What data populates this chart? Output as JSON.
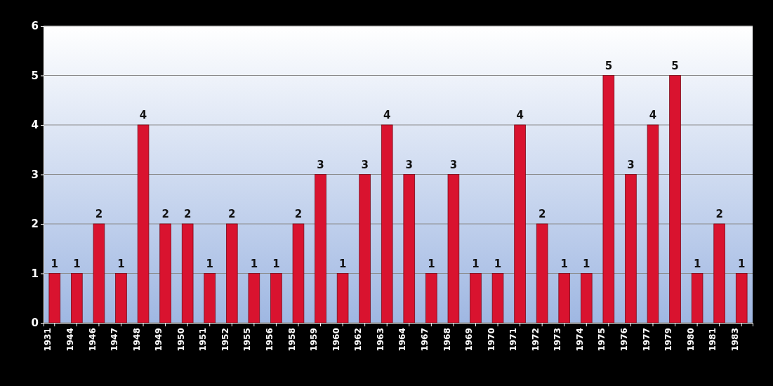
{
  "chart_data": {
    "type": "bar",
    "categories": [
      "1931",
      "1944",
      "1946",
      "1947",
      "1948",
      "1949",
      "1950",
      "1951",
      "1952",
      "1955",
      "1956",
      "1958",
      "1959",
      "1960",
      "1962",
      "1963",
      "1964",
      "1967",
      "1968",
      "1969",
      "1970",
      "1971",
      "1972",
      "1973",
      "1974",
      "1975",
      "1976",
      "1977",
      "1979",
      "1980",
      "1981",
      "1983"
    ],
    "values": [
      1,
      1,
      2,
      1,
      4,
      2,
      2,
      1,
      2,
      1,
      1,
      2,
      3,
      1,
      3,
      4,
      3,
      1,
      3,
      1,
      1,
      4,
      2,
      1,
      1,
      5,
      3,
      4,
      5,
      1,
      2,
      1
    ],
    "color": "#d9132f",
    "ylim": [
      0,
      6
    ],
    "yticks": [
      0,
      1,
      2,
      3,
      4,
      5,
      6
    ],
    "grid": "y",
    "data_labels": true
  }
}
